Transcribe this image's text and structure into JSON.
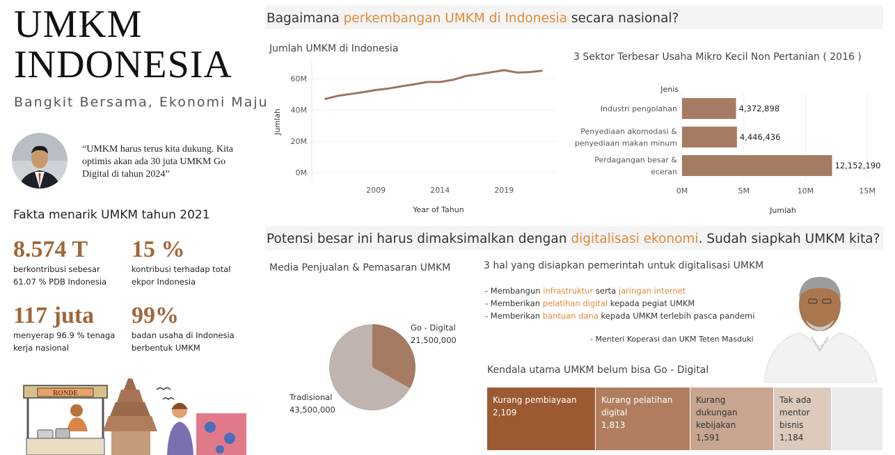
{
  "left": {
    "title_line1": "UMKM",
    "title_line2": "INDONESIA",
    "tagline": "Bangkit Bersama, Ekonomi Maju",
    "quote": "“UMKM harus terus kita dukung. Kita optimis akan ada 30 juta UMKM Go Digital di tahun 2024”",
    "fakta_title": "Fakta menarik UMKM tahun 2021",
    "stats": [
      {
        "value": "8.574 T",
        "desc1": "berkontribusi sebesar",
        "desc2": "61.07 % PDB Indonesia"
      },
      {
        "value": "15 %",
        "desc1": "kontribusi terhadap total",
        "desc2": "ekpor Indonesia"
      },
      {
        "value": "117 juta",
        "desc1": "menyerap 96.9 % tenaga",
        "desc2": "kerja nasional"
      },
      {
        "value": "99%",
        "desc1": "badan usaha di Indonesia",
        "desc2": "berbentuk UMKM"
      }
    ],
    "illustration_sign": "RONDE"
  },
  "section1": {
    "pre": "Bagaimana ",
    "highlight": "perkembangan UMKM di Indonesia",
    "post": " secara nasional?",
    "color_highlight": "#e08a38"
  },
  "section2": {
    "pre": "Potensi besar ini harus dimaksimalkan dengan ",
    "highlight": "digitalisasi ekonomi",
    "post": ". Sudah siapkah UMKM kita?"
  },
  "chart_data": [
    {
      "type": "line",
      "title": "Jumlah UMKM di Indonesia",
      "xlabel": "Year of Tahun",
      "ylabel": "Jumlah",
      "x": [
        2005,
        2006,
        2007,
        2008,
        2009,
        2010,
        2011,
        2012,
        2013,
        2014,
        2015,
        2016,
        2017,
        2018,
        2019,
        2020,
        2021,
        2022
      ],
      "series": [
        {
          "values": [
            47.0,
            49.0,
            50.2,
            51.4,
            52.8,
            53.8,
            55.2,
            56.5,
            57.9,
            57.9,
            59.3,
            61.7,
            62.9,
            64.2,
            65.5,
            64.0,
            64.3,
            65.2
          ]
        }
      ],
      "xticks": [
        "2009",
        "2014",
        "2019"
      ],
      "yticks": [
        "0M",
        "20M",
        "40M",
        "60M"
      ],
      "color": "#9b7560"
    },
    {
      "type": "bar",
      "orientation": "horizontal",
      "title": "3 Sektor Terbesar Usaha Mikro Kecil Non Pertanian ( 2016 )",
      "legend_header": "Jenis",
      "xlabel": "Jumlah",
      "categories": [
        [
          "Industri pengolahan"
        ],
        [
          "Penyediaan akomodasi &",
          "penyediaan makan minum"
        ],
        [
          "Perdagangan besar &",
          "eceran"
        ]
      ],
      "values": [
        4372898,
        4446436,
        12152190
      ],
      "value_labels": [
        "4,372,898",
        "4,446,436",
        "12,152,190"
      ],
      "xticks": [
        "0M",
        "5M",
        "10M",
        "15M"
      ],
      "color": "#a67b63"
    },
    {
      "type": "pie",
      "title": "Media Penjualan & Pemasaran UMKM",
      "slices": [
        {
          "name": "Go - Digital",
          "value": 21500000,
          "label": "21,500,000",
          "color": "#a67b63"
        },
        {
          "name": "Tradisional",
          "value": 43500000,
          "label": "43,500,000",
          "color": "#bfb4ae"
        }
      ]
    },
    {
      "type": "treemap",
      "title": "Kendala utama UMKM belum bisa Go - Digital",
      "cells": [
        {
          "label_lines": [
            "Kurang pembiayaan"
          ],
          "value": "2,109",
          "color": "#9c5a33"
        },
        {
          "label_lines": [
            "Kurang pelatihan",
            "digital"
          ],
          "value": "1,813",
          "color": "#b07e5f"
        },
        {
          "label_lines": [
            "Kurang dukungan",
            "kebijakan"
          ],
          "value": "1,591",
          "color": "#c8a590"
        },
        {
          "label_lines": [
            "Tak ada",
            "mentor",
            "bisnis"
          ],
          "value": "1,184",
          "color": "#dccbbd"
        },
        {
          "label_lines": [],
          "value": "",
          "color": "#ebebeb"
        }
      ]
    }
  ],
  "gov": {
    "title": "3 hal yang disiapkan pemerintah untuk digitalisasi UMKM",
    "items": [
      {
        "pre": "- Membangun ",
        "h1": "infrastruktur",
        "mid": " serta ",
        "h2": "jaringan internet",
        "post": ""
      },
      {
        "pre": "- Memberikan ",
        "h1": "pelatihan digital",
        "mid": " kepada pegiat UMKM",
        "h2": "",
        "post": ""
      },
      {
        "pre": "- Memberikan ",
        "h1": "bantuan dana",
        "mid": " kepada UMKM terlebih pasca pandemi",
        "h2": "",
        "post": ""
      }
    ],
    "source": "- Menteri Koperasi dan UKM Teten Masduki"
  }
}
